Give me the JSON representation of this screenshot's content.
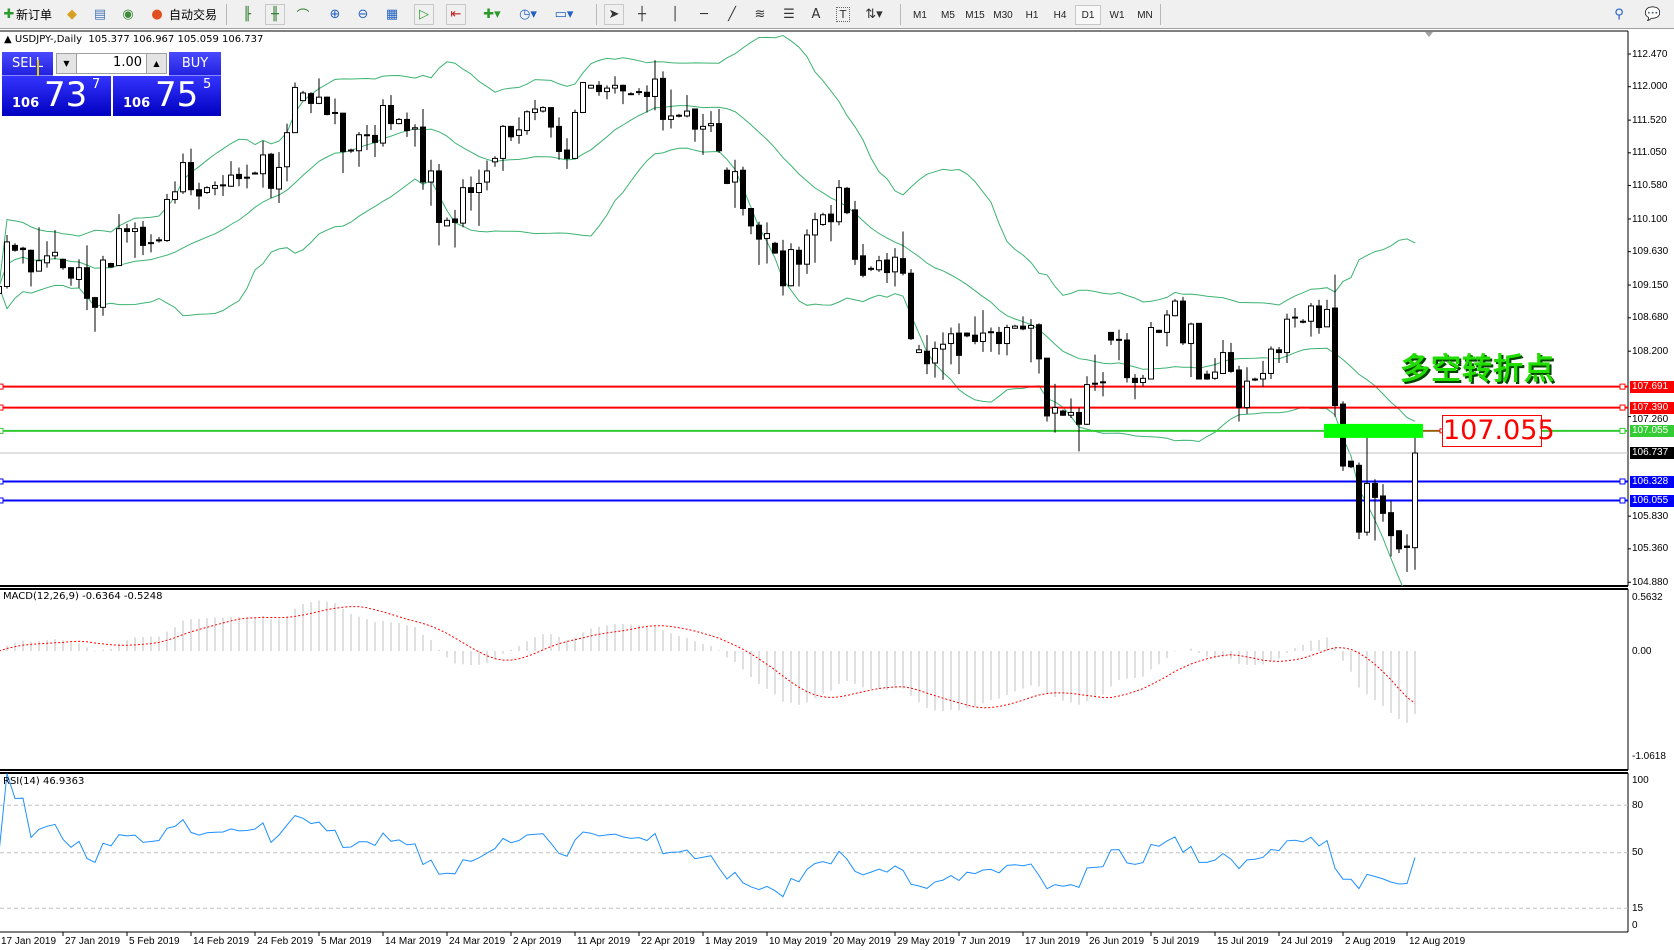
{
  "toolbar": {
    "new_order": "新订单",
    "auto_trading": "自动交易",
    "icons": [
      "new-order-icon",
      "expert-icon",
      "history-icon",
      "signals-icon",
      "auto-trading-icon",
      "bar-chart-icon",
      "candlestick-icon",
      "line-chart-icon",
      "zoom-in-icon",
      "zoom-out-icon",
      "tile-windows-icon",
      "auto-scroll-icon",
      "chart-shift-icon",
      "indicators-icon",
      "periods-icon",
      "templates-icon",
      "cursor-icon",
      "crosshair-icon",
      "vertical-line-icon",
      "horizontal-line-icon",
      "trendline-icon",
      "fibonacci-icon",
      "fibo-fan-icon",
      "text-icon",
      "text-label-icon",
      "arrows-icon"
    ],
    "text_tool": "A",
    "label_tool": "T",
    "timeframes": [
      "M1",
      "M5",
      "M15",
      "M30",
      "H1",
      "H4",
      "D1",
      "W1",
      "MN"
    ],
    "active_timeframe": "D1"
  },
  "chart": {
    "symbol": "USDJPY-,Daily",
    "ohlc": "105.377 106.967 105.059 106.737"
  },
  "trade_panel": {
    "sell_label": "SELL",
    "buy_label": "BUY",
    "lot_value": "1.00",
    "sell_prefix": "106",
    "sell_main": "73",
    "sell_sup": "7",
    "buy_prefix": "106",
    "buy_main": "75",
    "buy_sup": "5"
  },
  "annotation": {
    "text": "多空转折点",
    "level_label": "107.055",
    "zone_color": "#00ff00"
  },
  "price_axis": [
    "112.470",
    "112.000",
    "111.520",
    "111.050",
    "110.580",
    "110.100",
    "109.630",
    "109.150",
    "108.680",
    "108.200",
    "107.260",
    "105.830",
    "105.360",
    "104.880"
  ],
  "levels": [
    {
      "price": 107.691,
      "label": "107.691",
      "color": "#ff0000"
    },
    {
      "price": 107.39,
      "label": "107.390",
      "color": "#ff0000"
    },
    {
      "price": 107.055,
      "label": "107.055",
      "color": "#33cc33"
    },
    {
      "price": 106.328,
      "label": "106.328",
      "color": "#0000ff"
    },
    {
      "price": 106.055,
      "label": "106.055",
      "color": "#0000ff"
    }
  ],
  "current_price": {
    "price": 106.737,
    "label": "106.737",
    "color": "#000000"
  },
  "macd": {
    "label": "MACD(12,26,9) -0.6364 -0.5248",
    "axis": [
      "0.5632",
      "0.00",
      "-1.0618"
    ],
    "signal_color": "#ff0000",
    "hist_color": "#c0c0c0"
  },
  "rsi": {
    "label": "RSI(14) 46.9363",
    "axis": [
      "100",
      "80",
      "50",
      "15",
      "0"
    ],
    "levels": [
      80,
      50,
      15
    ],
    "color": "#1e90ff"
  },
  "date_axis": [
    "17 Jan 2019",
    "27 Jan 2019",
    "5 Feb 2019",
    "14 Feb 2019",
    "24 Feb 2019",
    "5 Mar 2019",
    "14 Mar 2019",
    "24 Mar 2019",
    "2 Apr 2019",
    "11 Apr 2019",
    "22 Apr 2019",
    "1 May 2019",
    "10 May 2019",
    "20 May 2019",
    "29 May 2019",
    "7 Jun 2019",
    "17 Jun 2019",
    "26 Jun 2019",
    "5 Jul 2019",
    "15 Jul 2019",
    "24 Jul 2019",
    "2 Aug 2019",
    "12 Aug 2019"
  ],
  "chart_data": {
    "type": "candlestick",
    "ylim": [
      104.88,
      112.47
    ],
    "bollinger_color": "#3cb371",
    "candles_ohlc": [
      [
        109.03,
        109.15,
        109.0,
        109.13
      ],
      [
        109.13,
        109.87,
        109.1,
        109.77
      ],
      [
        109.72,
        109.75,
        109.63,
        109.65
      ],
      [
        109.68,
        109.7,
        109.46,
        109.66
      ],
      [
        109.65,
        109.66,
        109.13,
        109.34
      ],
      [
        109.35,
        109.98,
        109.35,
        109.5
      ],
      [
        109.47,
        109.78,
        109.4,
        109.57
      ],
      [
        109.57,
        109.94,
        109.52,
        109.62
      ],
      [
        109.52,
        109.53,
        109.37,
        109.4
      ],
      [
        109.4,
        109.41,
        109.14,
        109.25
      ],
      [
        109.23,
        109.52,
        109.11,
        109.4
      ],
      [
        109.4,
        109.72,
        108.79,
        108.96
      ],
      [
        108.97,
        108.98,
        108.48,
        108.83
      ],
      [
        108.83,
        109.57,
        108.71,
        109.51
      ],
      [
        109.46,
        109.47,
        109.4,
        109.41
      ],
      [
        109.43,
        110.17,
        109.43,
        109.96
      ],
      [
        109.96,
        110.03,
        109.76,
        109.92
      ],
      [
        109.92,
        110.05,
        109.54,
        109.96
      ],
      [
        109.98,
        110.07,
        109.58,
        109.72
      ],
      [
        109.75,
        109.88,
        109.62,
        109.76
      ],
      [
        109.79,
        109.84,
        109.76,
        109.8
      ],
      [
        109.79,
        110.46,
        109.77,
        110.38
      ],
      [
        110.38,
        110.64,
        110.32,
        110.49
      ],
      [
        110.49,
        111.04,
        110.46,
        110.91
      ],
      [
        110.91,
        111.11,
        110.44,
        110.52
      ],
      [
        110.52,
        110.62,
        110.24,
        110.43
      ],
      [
        110.48,
        110.57,
        110.46,
        110.55
      ],
      [
        110.54,
        110.64,
        110.44,
        110.58
      ],
      [
        110.58,
        110.73,
        110.43,
        110.59
      ],
      [
        110.57,
        110.93,
        110.56,
        110.73
      ],
      [
        110.74,
        110.84,
        110.57,
        110.68
      ],
      [
        110.69,
        110.88,
        110.54,
        110.7
      ],
      [
        110.75,
        110.78,
        110.74,
        110.76
      ],
      [
        110.75,
        111.22,
        110.55,
        111.02
      ],
      [
        111.03,
        111.05,
        110.4,
        110.54
      ],
      [
        110.53,
        111.06,
        110.33,
        110.84
      ],
      [
        110.85,
        111.47,
        110.64,
        111.34
      ],
      [
        111.34,
        112.06,
        111.34,
        111.99
      ],
      [
        111.8,
        111.94,
        111.8,
        111.91
      ],
      [
        111.9,
        111.92,
        111.62,
        111.76
      ],
      [
        111.76,
        112.12,
        111.75,
        111.85
      ],
      [
        111.85,
        111.86,
        111.59,
        111.6
      ],
      [
        111.62,
        111.83,
        111.46,
        111.63
      ],
      [
        111.62,
        111.62,
        110.76,
        111.07
      ],
      [
        111.08,
        111.11,
        111.05,
        111.09
      ],
      [
        111.08,
        111.35,
        110.85,
        111.31
      ],
      [
        111.3,
        111.45,
        111.09,
        111.31
      ],
      [
        111.3,
        111.45,
        110.99,
        111.2
      ],
      [
        111.19,
        111.82,
        111.14,
        111.73
      ],
      [
        111.73,
        111.88,
        111.38,
        111.47
      ],
      [
        111.47,
        111.55,
        111.46,
        111.53
      ],
      [
        111.53,
        111.63,
        111.28,
        111.37
      ],
      [
        111.39,
        111.46,
        111.14,
        111.41
      ],
      [
        111.42,
        111.68,
        110.52,
        110.63
      ],
      [
        110.63,
        110.95,
        110.29,
        110.79
      ],
      [
        110.79,
        110.89,
        109.72,
        110.05
      ],
      [
        110.0,
        110.12,
        110.0,
        110.08
      ],
      [
        110.1,
        110.23,
        109.69,
        110.05
      ],
      [
        110.04,
        110.67,
        109.98,
        110.55
      ],
      [
        110.55,
        110.71,
        110.22,
        110.48
      ],
      [
        110.48,
        110.81,
        110.0,
        110.61
      ],
      [
        110.63,
        110.94,
        110.51,
        110.79
      ],
      [
        110.92,
        111.0,
        110.85,
        110.97
      ],
      [
        110.97,
        111.45,
        110.79,
        111.43
      ],
      [
        111.43,
        111.43,
        111.22,
        111.28
      ],
      [
        111.3,
        111.56,
        111.18,
        111.38
      ],
      [
        111.37,
        111.66,
        111.31,
        111.64
      ],
      [
        111.63,
        111.81,
        111.52,
        111.68
      ],
      [
        111.65,
        111.72,
        111.63,
        111.7
      ],
      [
        111.7,
        111.7,
        111.27,
        111.42
      ],
      [
        111.43,
        111.56,
        110.95,
        111.07
      ],
      [
        111.09,
        111.26,
        110.82,
        110.97
      ],
      [
        110.97,
        111.67,
        110.96,
        111.63
      ],
      [
        111.63,
        112.07,
        111.62,
        112.06
      ],
      [
        111.98,
        112.03,
        111.97,
        112.02
      ],
      [
        112.02,
        112.08,
        111.87,
        111.93
      ],
      [
        111.93,
        112.02,
        111.82,
        111.98
      ],
      [
        111.98,
        112.15,
        111.9,
        112.02
      ],
      [
        112.02,
        112.03,
        111.75,
        111.94
      ],
      [
        111.9,
        111.92,
        111.88,
        111.9
      ],
      [
        111.92,
        111.98,
        111.88,
        111.93
      ],
      [
        111.92,
        112.02,
        111.63,
        111.86
      ],
      [
        111.86,
        112.38,
        111.66,
        112.11
      ],
      [
        112.12,
        112.22,
        111.37,
        111.53
      ],
      [
        111.53,
        111.96,
        111.4,
        111.58
      ],
      [
        111.58,
        111.61,
        111.56,
        111.59
      ],
      [
        111.58,
        111.88,
        111.56,
        111.65
      ],
      [
        111.68,
        111.68,
        111.21,
        111.39
      ],
      [
        111.39,
        111.61,
        111.02,
        111.43
      ],
      [
        111.44,
        111.65,
        111.35,
        111.47
      ],
      [
        111.47,
        111.68,
        111.05,
        111.08
      ],
      [
        110.8,
        110.84,
        110.6,
        110.61
      ],
      [
        110.63,
        110.95,
        110.26,
        110.78
      ],
      [
        110.8,
        110.85,
        110.15,
        110.25
      ],
      [
        110.25,
        110.25,
        109.88,
        110.0
      ],
      [
        110.01,
        110.06,
        109.44,
        109.81
      ],
      [
        109.82,
        110.05,
        109.46,
        109.89
      ],
      [
        109.75,
        109.77,
        109.6,
        109.61
      ],
      [
        109.64,
        109.8,
        109.0,
        109.14
      ],
      [
        109.14,
        109.75,
        109.13,
        109.66
      ],
      [
        109.65,
        109.7,
        109.13,
        109.45
      ],
      [
        109.45,
        109.95,
        109.31,
        109.87
      ],
      [
        109.87,
        110.19,
        109.47,
        110.09
      ],
      [
        110.02,
        110.19,
        110.0,
        110.16
      ],
      [
        110.17,
        110.3,
        109.78,
        110.06
      ],
      [
        110.06,
        110.66,
        110.01,
        110.55
      ],
      [
        110.54,
        110.56,
        110.17,
        110.19
      ],
      [
        110.23,
        110.36,
        109.44,
        109.52
      ],
      [
        109.57,
        109.74,
        109.26,
        109.29
      ],
      [
        109.38,
        109.42,
        109.35,
        109.39
      ],
      [
        109.37,
        109.57,
        109.34,
        109.5
      ],
      [
        109.51,
        109.61,
        109.18,
        109.33
      ],
      [
        109.34,
        109.68,
        109.13,
        109.55
      ],
      [
        109.53,
        109.92,
        109.29,
        109.32
      ],
      [
        109.32,
        109.38,
        108.36,
        108.38
      ],
      [
        108.18,
        108.29,
        108.18,
        108.22
      ],
      [
        108.2,
        108.43,
        107.87,
        108.02
      ],
      [
        108.03,
        108.34,
        107.82,
        108.24
      ],
      [
        108.23,
        108.47,
        107.79,
        108.3
      ],
      [
        108.31,
        108.54,
        108.01,
        108.45
      ],
      [
        108.46,
        108.6,
        107.87,
        108.14
      ],
      [
        108.46,
        108.47,
        108.4,
        108.42
      ],
      [
        108.43,
        108.7,
        108.3,
        108.34
      ],
      [
        108.34,
        108.79,
        108.19,
        108.46
      ],
      [
        108.47,
        108.54,
        108.19,
        108.48
      ],
      [
        108.47,
        108.55,
        108.15,
        108.31
      ],
      [
        108.31,
        108.58,
        108.14,
        108.54
      ],
      [
        108.53,
        108.58,
        108.52,
        108.56
      ],
      [
        108.56,
        108.7,
        108.5,
        108.52
      ],
      [
        108.53,
        108.66,
        108.04,
        108.57
      ],
      [
        108.58,
        108.6,
        107.88,
        108.09
      ],
      [
        108.1,
        108.1,
        107.19,
        107.27
      ],
      [
        107.31,
        107.73,
        107.03,
        107.39
      ],
      [
        107.34,
        107.36,
        107.27,
        107.28
      ],
      [
        107.28,
        107.52,
        107.24,
        107.32
      ],
      [
        107.32,
        107.39,
        106.76,
        107.15
      ],
      [
        107.15,
        107.84,
        107.14,
        107.72
      ],
      [
        107.73,
        108.15,
        107.63,
        107.74
      ],
      [
        107.75,
        107.9,
        107.55,
        107.76
      ],
      [
        108.47,
        108.47,
        108.29,
        108.36
      ],
      [
        108.36,
        108.51,
        108.07,
        108.37
      ],
      [
        108.36,
        108.46,
        107.75,
        107.82
      ],
      [
        107.81,
        107.87,
        107.51,
        107.75
      ],
      [
        107.75,
        107.86,
        107.69,
        107.81
      ],
      [
        107.8,
        108.62,
        107.8,
        108.54
      ],
      [
        108.5,
        108.51,
        108.46,
        108.47
      ],
      [
        108.47,
        108.79,
        108.27,
        108.72
      ],
      [
        108.71,
        108.95,
        108.7,
        108.92
      ],
      [
        108.92,
        108.98,
        108.29,
        108.32
      ],
      [
        108.31,
        108.61,
        107.83,
        108.59
      ],
      [
        108.6,
        108.6,
        107.8,
        107.8
      ],
      [
        107.87,
        107.92,
        107.79,
        107.8
      ],
      [
        107.81,
        108.1,
        107.79,
        107.9
      ],
      [
        107.88,
        108.36,
        107.87,
        108.18
      ],
      [
        108.18,
        108.32,
        107.89,
        107.91
      ],
      [
        107.93,
        107.99,
        107.19,
        107.39
      ],
      [
        107.39,
        107.97,
        107.3,
        107.77
      ],
      [
        107.79,
        107.82,
        107.77,
        107.8
      ],
      [
        107.8,
        108.06,
        107.69,
        107.88
      ],
      [
        107.88,
        108.27,
        107.8,
        108.23
      ],
      [
        108.22,
        108.26,
        108.03,
        108.18
      ],
      [
        108.18,
        108.74,
        108.03,
        108.66
      ],
      [
        108.68,
        108.82,
        108.54,
        108.69
      ],
      [
        108.62,
        108.66,
        108.6,
        108.63
      ],
      [
        108.63,
        108.89,
        108.41,
        108.85
      ],
      [
        108.85,
        108.94,
        108.45,
        108.54
      ],
      [
        108.55,
        108.94,
        108.55,
        108.8
      ],
      [
        108.82,
        109.3,
        107.26,
        107.42
      ],
      [
        107.44,
        107.48,
        106.48,
        106.55
      ],
      [
        106.62,
        106.62,
        106.52,
        106.54
      ],
      [
        106.56,
        106.6,
        105.5,
        105.6
      ],
      [
        105.6,
        106.97,
        105.55,
        106.3
      ],
      [
        106.3,
        106.36,
        105.48,
        106.1
      ],
      [
        106.12,
        106.29,
        105.75,
        105.87
      ],
      [
        105.88,
        106.05,
        105.25,
        105.55
      ],
      [
        105.62,
        105.63,
        105.3,
        105.36
      ],
      [
        105.4,
        105.57,
        105.03,
        105.38
      ],
      [
        105.377,
        106.967,
        105.059,
        106.737
      ]
    ]
  }
}
